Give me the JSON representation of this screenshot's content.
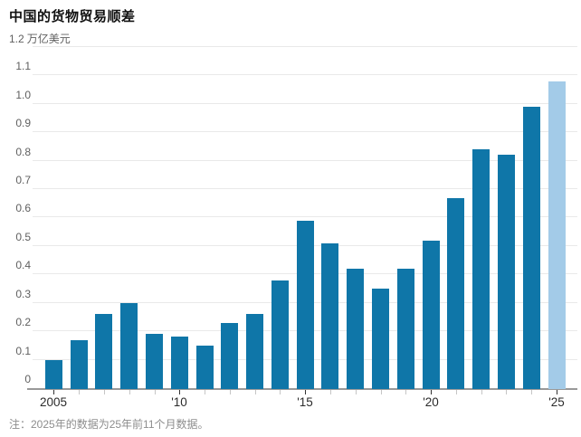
{
  "title": "中国的货物贸易顺差",
  "note": "注：2025年的数据为25年前11个月数据。",
  "chart_data": {
    "type": "bar",
    "title": "中国的货物贸易顺差",
    "unit_label": "万亿美元",
    "ymax_label": "1.2",
    "categories": [
      2005,
      2006,
      2007,
      2008,
      2009,
      2010,
      2011,
      2012,
      2013,
      2014,
      2015,
      2016,
      2017,
      2018,
      2019,
      2020,
      2021,
      2022,
      2023,
      2024,
      2025
    ],
    "values": [
      0.1,
      0.17,
      0.26,
      0.3,
      0.19,
      0.18,
      0.15,
      0.23,
      0.26,
      0.38,
      0.59,
      0.51,
      0.42,
      0.35,
      0.42,
      0.52,
      0.67,
      0.84,
      0.82,
      0.99,
      1.08
    ],
    "highlight_category": 2025,
    "ylim": [
      0,
      1.2
    ],
    "ytick_step": 0.1,
    "ytick_labels": [
      "0",
      "0.1",
      "0.2",
      "0.3",
      "0.4",
      "0.5",
      "0.6",
      "0.7",
      "0.8",
      "0.9",
      "1.0",
      "1.1",
      "1.2"
    ],
    "xtick_labels": [
      {
        "year": 2005,
        "label": "2005"
      },
      {
        "year": 2010,
        "label": "'10"
      },
      {
        "year": 2015,
        "label": "'15"
      },
      {
        "year": 2020,
        "label": "'20"
      },
      {
        "year": 2025,
        "label": "'25"
      }
    ],
    "colors": {
      "bar": "#0f76a8",
      "bar_highlight": "#a3cbe8",
      "grid": "#e9e9e9",
      "axis": "#999999",
      "tick_labeled": "#333333",
      "tick_unlabeled": "#c6c6c6"
    },
    "legend": false,
    "grid": true
  }
}
